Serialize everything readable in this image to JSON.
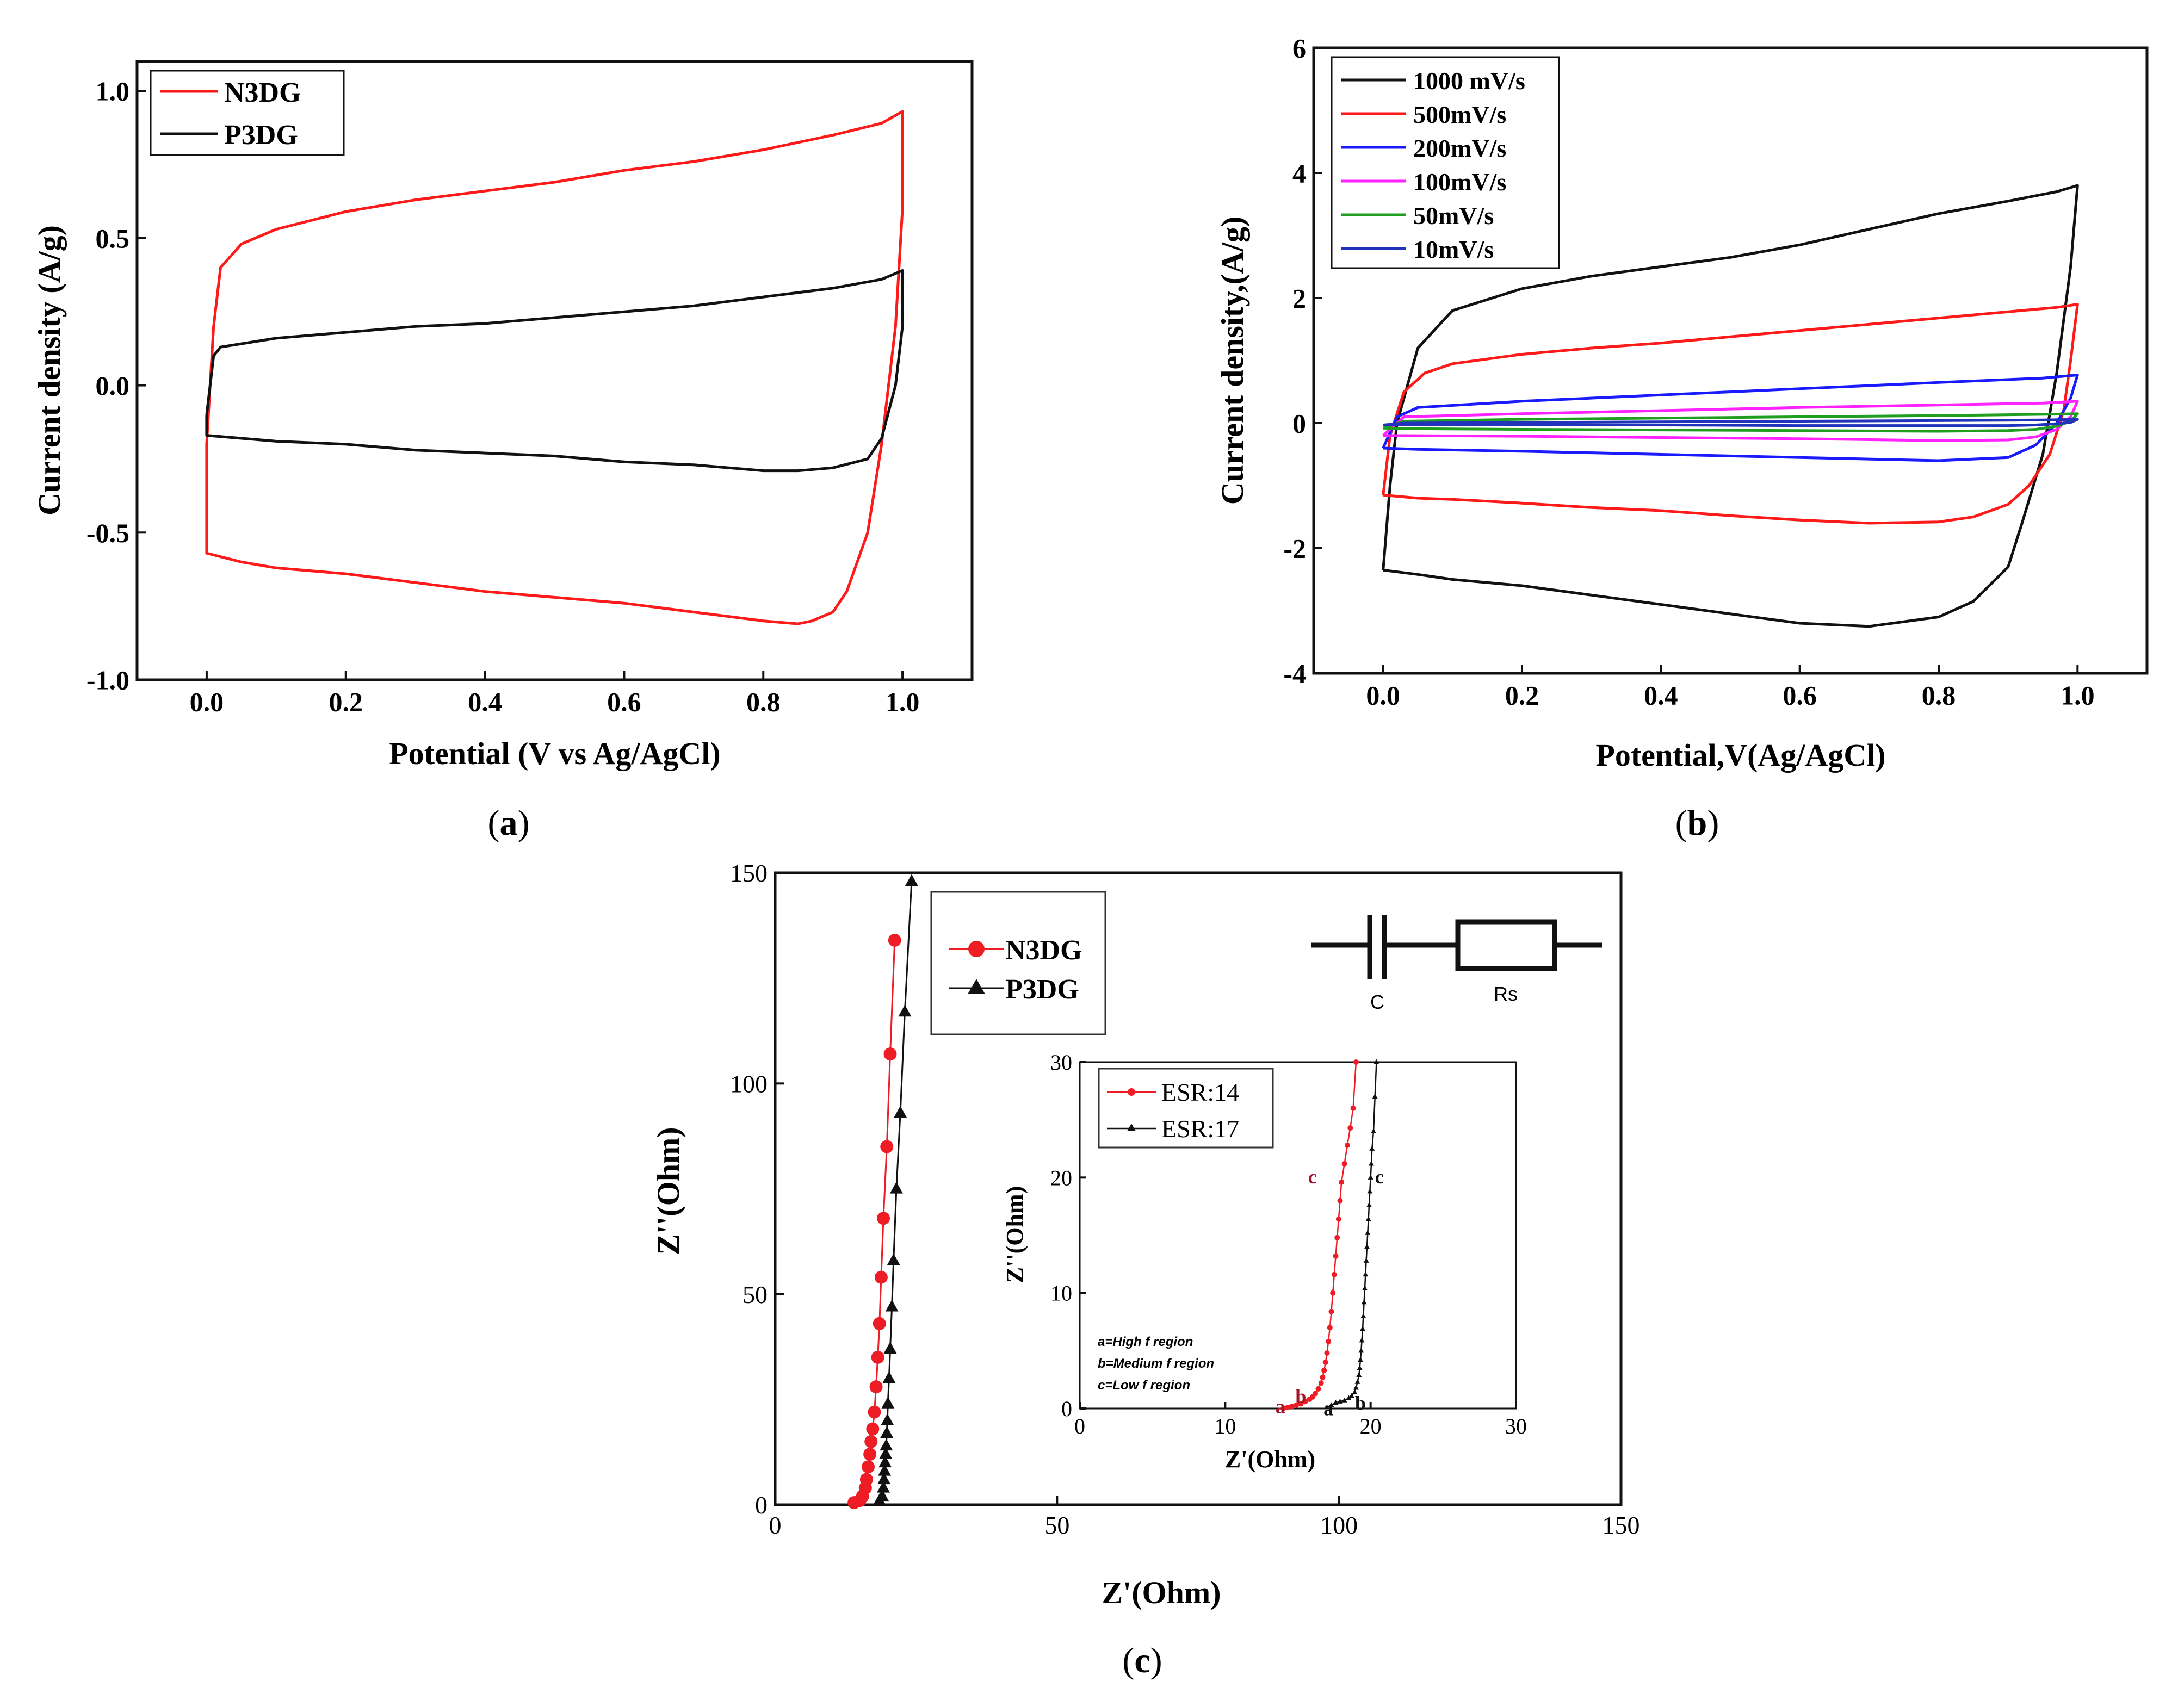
{
  "chart_data": [
    {
      "id": "a",
      "type": "line",
      "subtitle": "a",
      "xlabel": "Potential (V vs Ag/AgCl)",
      "ylabel": "Current density (A/g)",
      "xlim": [
        -0.1,
        1.1
      ],
      "ylim": [
        -1.0,
        1.1
      ],
      "xticks": [
        0.0,
        0.2,
        0.4,
        0.6,
        0.8,
        1.0
      ],
      "xtick_labels": [
        "0.0",
        "0.2",
        "0.4",
        "0.6",
        "0.8",
        "1.0"
      ],
      "yticks": [
        -1.0,
        -0.5,
        0.0,
        0.5,
        1.0
      ],
      "ytick_labels": [
        "-1.0",
        "-0.5",
        "0.0",
        "0.5",
        "1.0"
      ],
      "legend": "top-left",
      "grid": false,
      "series": [
        {
          "name": "N3DG",
          "color": "#ff1a1a",
          "x": [
            0.0,
            0.01,
            0.02,
            0.05,
            0.1,
            0.2,
            0.3,
            0.4,
            0.5,
            0.6,
            0.7,
            0.8,
            0.9,
            0.97,
            1.0,
            1.0,
            0.99,
            0.97,
            0.95,
            0.92,
            0.9,
            0.87,
            0.85,
            0.8,
            0.7,
            0.6,
            0.5,
            0.4,
            0.3,
            0.2,
            0.1,
            0.05,
            0.0,
            0.0,
            0.0
          ],
          "y": [
            -0.2,
            0.2,
            0.4,
            0.48,
            0.53,
            0.59,
            0.63,
            0.66,
            0.69,
            0.73,
            0.76,
            0.8,
            0.85,
            0.89,
            0.93,
            0.6,
            0.2,
            -0.2,
            -0.5,
            -0.7,
            -0.77,
            -0.8,
            -0.81,
            -0.8,
            -0.77,
            -0.74,
            -0.72,
            -0.7,
            -0.67,
            -0.64,
            -0.62,
            -0.6,
            -0.57,
            -0.4,
            -0.2
          ]
        },
        {
          "name": "P3DG",
          "color": "#111111",
          "x": [
            0.0,
            0.005,
            0.01,
            0.02,
            0.1,
            0.2,
            0.3,
            0.4,
            0.5,
            0.6,
            0.7,
            0.8,
            0.9,
            0.97,
            1.0,
            1.0,
            0.99,
            0.97,
            0.95,
            0.9,
            0.85,
            0.8,
            0.7,
            0.6,
            0.5,
            0.4,
            0.3,
            0.2,
            0.1,
            0.0,
            0.0
          ],
          "y": [
            -0.1,
            0.0,
            0.1,
            0.13,
            0.16,
            0.18,
            0.2,
            0.21,
            0.23,
            0.25,
            0.27,
            0.3,
            0.33,
            0.36,
            0.39,
            0.2,
            0.0,
            -0.18,
            -0.25,
            -0.28,
            -0.29,
            -0.29,
            -0.27,
            -0.26,
            -0.24,
            -0.23,
            -0.22,
            -0.2,
            -0.19,
            -0.17,
            -0.1
          ]
        }
      ]
    },
    {
      "id": "b",
      "type": "line",
      "subtitle": "b",
      "xlabel": "Potential,V(Ag/AgCl)",
      "ylabel": "Current density,(A/g)",
      "xlim": [
        -0.1,
        1.1
      ],
      "ylim": [
        -4,
        6
      ],
      "xticks": [
        0.0,
        0.2,
        0.4,
        0.6,
        0.8,
        1.0
      ],
      "xtick_labels": [
        "0.0",
        "0.2",
        "0.4",
        "0.6",
        "0.8",
        "1.0"
      ],
      "yticks": [
        -4,
        -2,
        0,
        2,
        4,
        6
      ],
      "ytick_labels": [
        "-4",
        "-2",
        "0",
        "2",
        "4",
        "6"
      ],
      "legend": "top-left",
      "grid": false,
      "series": [
        {
          "name": "1000 mV/s",
          "color": "#111111",
          "x": [
            0.0,
            0.01,
            0.02,
            0.05,
            0.1,
            0.2,
            0.3,
            0.4,
            0.5,
            0.6,
            0.7,
            0.8,
            0.9,
            0.97,
            1.0,
            0.99,
            0.97,
            0.95,
            0.92,
            0.9,
            0.85,
            0.8,
            0.7,
            0.6,
            0.5,
            0.4,
            0.3,
            0.2,
            0.1,
            0.05,
            0.0,
            0.0
          ],
          "y": [
            -2.35,
            -1.0,
            0.0,
            1.2,
            1.8,
            2.15,
            2.35,
            2.5,
            2.65,
            2.85,
            3.1,
            3.35,
            3.55,
            3.7,
            3.8,
            2.5,
            0.8,
            -0.5,
            -1.6,
            -2.3,
            -2.85,
            -3.1,
            -3.25,
            -3.2,
            -3.05,
            -2.9,
            -2.75,
            -2.6,
            -2.5,
            -2.42,
            -2.35,
            -2.35
          ]
        },
        {
          "name": "500mV/s",
          "color": "#ff1a1a",
          "x": [
            0.0,
            0.01,
            0.03,
            0.06,
            0.1,
            0.2,
            0.3,
            0.4,
            0.5,
            0.6,
            0.7,
            0.8,
            0.9,
            0.97,
            1.0,
            0.99,
            0.98,
            0.96,
            0.93,
            0.9,
            0.85,
            0.8,
            0.7,
            0.6,
            0.5,
            0.4,
            0.3,
            0.2,
            0.1,
            0.05,
            0.0,
            0.0
          ],
          "y": [
            -1.15,
            -0.2,
            0.5,
            0.8,
            0.95,
            1.1,
            1.2,
            1.28,
            1.38,
            1.48,
            1.58,
            1.68,
            1.78,
            1.85,
            1.9,
            1.0,
            0.2,
            -0.5,
            -1.0,
            -1.3,
            -1.5,
            -1.58,
            -1.6,
            -1.55,
            -1.48,
            -1.4,
            -1.35,
            -1.28,
            -1.22,
            -1.2,
            -1.15,
            -1.15
          ]
        },
        {
          "name": "200mV/s",
          "color": "#1a1aff",
          "x": [
            0.0,
            0.02,
            0.05,
            0.2,
            0.4,
            0.6,
            0.8,
            0.95,
            1.0,
            0.99,
            0.97,
            0.94,
            0.9,
            0.8,
            0.6,
            0.4,
            0.2,
            0.05,
            0.0,
            0.0
          ],
          "y": [
            -0.4,
            0.1,
            0.25,
            0.35,
            0.45,
            0.55,
            0.65,
            0.72,
            0.77,
            0.4,
            0.0,
            -0.35,
            -0.55,
            -0.6,
            -0.55,
            -0.5,
            -0.45,
            -0.42,
            -0.4,
            -0.4
          ]
        },
        {
          "name": "100mV/s",
          "color": "#ff22ff",
          "x": [
            0.0,
            0.03,
            0.2,
            0.4,
            0.6,
            0.8,
            0.95,
            1.0,
            0.99,
            0.97,
            0.94,
            0.9,
            0.8,
            0.6,
            0.4,
            0.2,
            0.03,
            0.0,
            0.0
          ],
          "y": [
            -0.2,
            0.1,
            0.15,
            0.2,
            0.25,
            0.29,
            0.32,
            0.35,
            0.1,
            -0.1,
            -0.22,
            -0.27,
            -0.28,
            -0.25,
            -0.23,
            -0.21,
            -0.2,
            -0.2,
            -0.2
          ]
        },
        {
          "name": "50mV/s",
          "color": "#1f9e1f",
          "x": [
            0.0,
            0.03,
            0.2,
            0.4,
            0.6,
            0.8,
            0.95,
            1.0,
            0.99,
            0.97,
            0.94,
            0.9,
            0.8,
            0.6,
            0.4,
            0.2,
            0.03,
            0.0,
            0.0
          ],
          "y": [
            -0.08,
            0.03,
            0.06,
            0.08,
            0.1,
            0.12,
            0.14,
            0.15,
            0.03,
            -0.05,
            -0.1,
            -0.12,
            -0.13,
            -0.12,
            -0.11,
            -0.1,
            -0.09,
            -0.08,
            -0.08
          ]
        },
        {
          "name": "10mV/s",
          "color": "#2233bb",
          "x": [
            0.0,
            0.03,
            0.2,
            0.4,
            0.6,
            0.8,
            0.95,
            1.0,
            0.99,
            0.97,
            0.94,
            0.9,
            0.8,
            0.6,
            0.4,
            0.2,
            0.03,
            0.0,
            0.0
          ],
          "y": [
            -0.03,
            0.0,
            0.01,
            0.02,
            0.03,
            0.04,
            0.05,
            0.06,
            0.01,
            -0.01,
            -0.03,
            -0.04,
            -0.04,
            -0.04,
            -0.03,
            -0.03,
            -0.03,
            -0.03,
            -0.03
          ]
        }
      ]
    },
    {
      "id": "c",
      "type": "scatter",
      "subtitle": "c",
      "xlabel": "Z'(Ohm)",
      "ylabel": "Z''(Ohm)",
      "xlim": [
        0,
        150
      ],
      "ylim": [
        0,
        150
      ],
      "xticks": [
        0,
        50,
        100,
        150
      ],
      "xtick_labels": [
        "0",
        "50",
        "100",
        "150"
      ],
      "yticks": [
        0,
        50,
        100,
        150
      ],
      "ytick_labels": [
        "0",
        "50",
        "100",
        "150"
      ],
      "legend": "top-left",
      "grid": false,
      "circuit": {
        "labels": [
          "C",
          "Rs"
        ]
      },
      "series": [
        {
          "name": "N3DG",
          "color": "#ee1c24",
          "marker": "circle",
          "x": [
            14,
            15,
            15.5,
            16,
            16.2,
            16.5,
            16.8,
            17,
            17.3,
            17.6,
            17.9,
            18.2,
            18.5,
            18.8,
            19.2,
            19.8,
            20.4,
            21.2
          ],
          "y": [
            0.5,
            1,
            2,
            4,
            6,
            9,
            12,
            15,
            18,
            22,
            28,
            35,
            43,
            54,
            68,
            85,
            107,
            134
          ]
        },
        {
          "name": "P3DG",
          "color": "#111111",
          "marker": "triangle",
          "x": [
            18.5,
            19,
            19.2,
            19.3,
            19.4,
            19.5,
            19.6,
            19.7,
            19.8,
            19.9,
            20.0,
            20.2,
            20.4,
            20.7,
            21.0,
            21.5,
            22.2,
            23.0,
            24.2
          ],
          "y": [
            1,
            2,
            4,
            6,
            8,
            10,
            12,
            14,
            17,
            20,
            24,
            30,
            37,
            47,
            58,
            75,
            93,
            117,
            148
          ]
        }
      ]
    },
    {
      "id": "c-inset",
      "type": "scatter",
      "xlabel": "Z'(Ohm)",
      "ylabel": "Z''(Ohm)",
      "xlim": [
        0,
        30
      ],
      "ylim": [
        0,
        30
      ],
      "xticks": [
        0,
        10,
        20,
        30
      ],
      "xtick_labels": [
        "0",
        "10",
        "20",
        "30"
      ],
      "yticks": [
        0,
        10,
        20,
        30
      ],
      "ytick_labels": [
        "0",
        "10",
        "20",
        "30"
      ],
      "legend": "top-left",
      "grid": false,
      "notes": [
        "a=High f region",
        "b=Medium f region",
        "c=Low f region"
      ],
      "point_labels": [
        {
          "text": "a",
          "x": 13.8,
          "y": -0.4,
          "color": "#a8132a"
        },
        {
          "text": "b",
          "x": 15.2,
          "y": 0.5,
          "color": "#a8132a"
        },
        {
          "text": "c",
          "x": 16.0,
          "y": 19.5,
          "color": "#a8132a"
        },
        {
          "text": "a",
          "x": 17.1,
          "y": -0.6,
          "color": "#111111"
        },
        {
          "text": "b",
          "x": 19.3,
          "y": -0.1,
          "color": "#111111"
        },
        {
          "text": "c",
          "x": 20.6,
          "y": 19.5,
          "color": "#111111"
        }
      ],
      "series": [
        {
          "name": "ESR:14",
          "color": "#ee1c24",
          "marker": "circle",
          "x": [
            14.0,
            14.3,
            14.6,
            14.9,
            15.2,
            15.5,
            15.8,
            16.0,
            16.2,
            16.4,
            16.6,
            16.7,
            16.8,
            16.9,
            17.0,
            17.1,
            17.2,
            17.3,
            17.4,
            17.5,
            17.6,
            17.7,
            17.8,
            17.9,
            18.0,
            18.2,
            18.4,
            18.6,
            18.8,
            19.0
          ],
          "y": [
            0.0,
            0.1,
            0.2,
            0.3,
            0.4,
            0.6,
            0.8,
            1.0,
            1.3,
            1.7,
            2.2,
            2.7,
            3.3,
            4.0,
            4.8,
            5.8,
            7.0,
            8.4,
            10.0,
            11.6,
            13.2,
            14.8,
            16.4,
            18.0,
            19.6,
            21.2,
            22.8,
            24.3,
            26.0,
            30.0
          ]
        },
        {
          "name": "ESR:17",
          "color": "#111111",
          "marker": "triangle",
          "x": [
            17.0,
            17.3,
            17.6,
            17.9,
            18.2,
            18.5,
            18.7,
            18.9,
            19.0,
            19.1,
            19.2,
            19.25,
            19.3,
            19.35,
            19.4,
            19.45,
            19.5,
            19.55,
            19.6,
            19.65,
            19.7,
            19.75,
            19.8,
            19.85,
            19.9,
            19.95,
            20.0,
            20.05,
            20.1,
            20.2,
            20.3,
            20.4
          ],
          "y": [
            0.1,
            0.3,
            0.5,
            0.6,
            0.7,
            0.9,
            1.1,
            1.4,
            1.8,
            2.3,
            2.9,
            3.5,
            4.2,
            5.0,
            5.9,
            6.9,
            8.0,
            9.2,
            10.4,
            11.6,
            12.8,
            14.0,
            15.2,
            16.4,
            17.6,
            18.8,
            20.0,
            21.2,
            22.5,
            24.0,
            27.0,
            30.0
          ]
        }
      ]
    }
  ]
}
